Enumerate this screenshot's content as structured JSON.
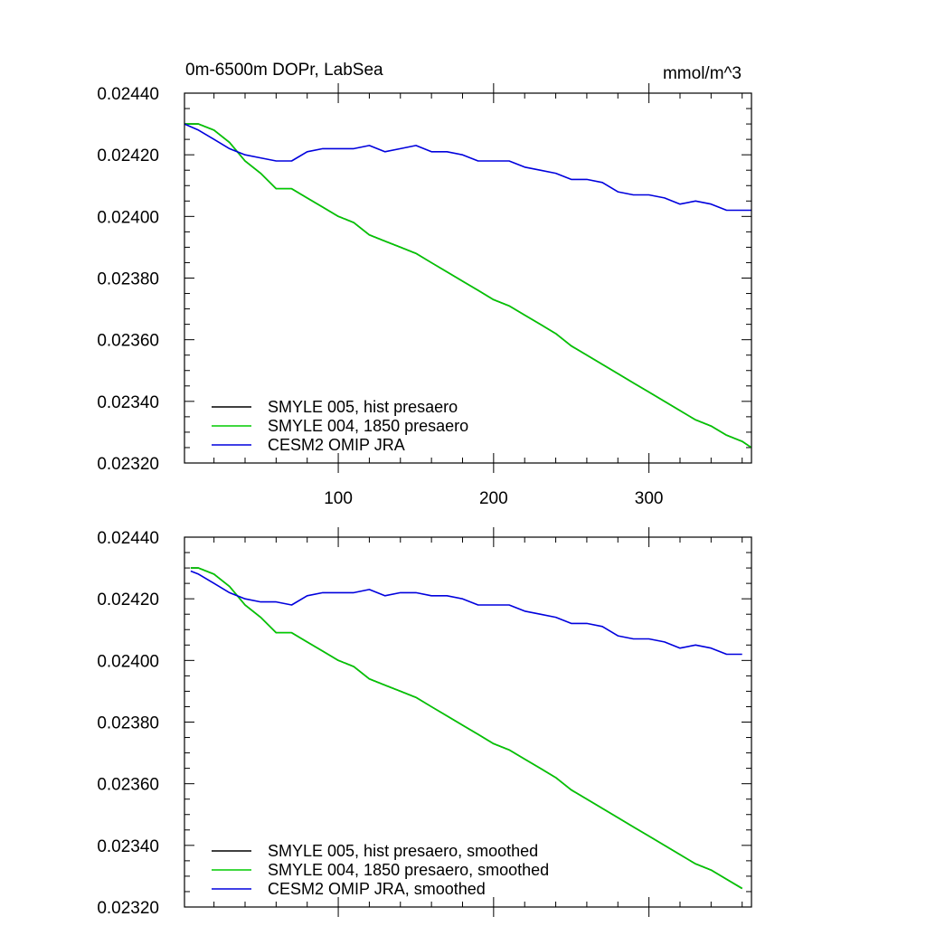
{
  "chart_data": [
    {
      "type": "line",
      "title": "0m-6500m DOPr, LabSea",
      "units": "mmol/m^3",
      "xlim": [
        1,
        366
      ],
      "ylim": [
        0.0232,
        0.0244
      ],
      "x_ticks": [
        100,
        200,
        300
      ],
      "x_tick_labels": [
        "100",
        "200",
        "300"
      ],
      "y_ticks": [
        0.0232,
        0.0234,
        0.0236,
        0.0238,
        0.024,
        0.0242,
        0.0244
      ],
      "y_tick_labels": [
        "0.02320",
        "0.02340",
        "0.02360",
        "0.02380",
        "0.02400",
        "0.02420",
        "0.02440"
      ],
      "legend": "bottom-left",
      "grid": false,
      "series": [
        {
          "name": "SMYLE 005, hist presaero",
          "color": "#000000",
          "x": [
            1,
            10,
            20,
            30,
            40,
            50,
            60,
            70,
            80,
            90,
            100,
            110,
            120,
            130,
            140,
            150,
            160,
            170,
            180,
            190,
            200,
            210,
            220,
            230,
            240,
            250,
            260,
            270,
            280,
            290,
            300,
            310,
            320,
            330,
            340,
            350,
            360,
            366
          ],
          "values": [
            0.0243,
            0.0243,
            0.02428,
            0.02424,
            0.02418,
            0.02414,
            0.02409,
            0.02409,
            0.02406,
            0.02403,
            0.024,
            0.02398,
            0.02394,
            0.02392,
            0.0239,
            0.02388,
            0.02385,
            0.02382,
            0.02379,
            0.02376,
            0.02373,
            0.02371,
            0.02368,
            0.02365,
            0.02362,
            0.02358,
            0.02355,
            0.02352,
            0.02349,
            0.02346,
            0.02343,
            0.0234,
            0.02337,
            0.02334,
            0.02332,
            0.02329,
            0.02327,
            0.02325
          ]
        },
        {
          "name": "SMYLE 004, 1850 presaero",
          "color": "#00cc00",
          "x": [
            1,
            10,
            20,
            30,
            40,
            50,
            60,
            70,
            80,
            90,
            100,
            110,
            120,
            130,
            140,
            150,
            160,
            170,
            180,
            190,
            200,
            210,
            220,
            230,
            240,
            250,
            260,
            270,
            280,
            290,
            300,
            310,
            320,
            330,
            340,
            350,
            360,
            366
          ],
          "values": [
            0.0243,
            0.0243,
            0.02428,
            0.02424,
            0.02418,
            0.02414,
            0.02409,
            0.02409,
            0.02406,
            0.02403,
            0.024,
            0.02398,
            0.02394,
            0.02392,
            0.0239,
            0.02388,
            0.02385,
            0.02382,
            0.02379,
            0.02376,
            0.02373,
            0.02371,
            0.02368,
            0.02365,
            0.02362,
            0.02358,
            0.02355,
            0.02352,
            0.02349,
            0.02346,
            0.02343,
            0.0234,
            0.02337,
            0.02334,
            0.02332,
            0.02329,
            0.02327,
            0.02325
          ]
        },
        {
          "name": "CESM2 OMIP JRA",
          "color": "#0000dd",
          "x": [
            1,
            10,
            20,
            30,
            40,
            50,
            60,
            70,
            80,
            90,
            100,
            110,
            120,
            130,
            140,
            150,
            160,
            170,
            180,
            190,
            200,
            210,
            220,
            230,
            240,
            250,
            260,
            270,
            280,
            290,
            300,
            310,
            320,
            330,
            340,
            350,
            360,
            366
          ],
          "values": [
            0.0243,
            0.02428,
            0.02425,
            0.02422,
            0.0242,
            0.02419,
            0.02418,
            0.02418,
            0.02421,
            0.02422,
            0.02422,
            0.02422,
            0.02423,
            0.02421,
            0.02422,
            0.02423,
            0.02421,
            0.02421,
            0.0242,
            0.02418,
            0.02418,
            0.02418,
            0.02416,
            0.02415,
            0.02414,
            0.02412,
            0.02412,
            0.02411,
            0.02408,
            0.02407,
            0.02407,
            0.02406,
            0.02404,
            0.02405,
            0.02404,
            0.02402,
            0.02402,
            0.02402
          ]
        }
      ]
    },
    {
      "type": "line",
      "title": "",
      "units": "",
      "xlim": [
        1,
        366
      ],
      "ylim": [
        0.0232,
        0.0244
      ],
      "x_ticks": [
        100,
        200,
        300
      ],
      "x_tick_labels": [],
      "y_ticks": [
        0.0232,
        0.0234,
        0.0236,
        0.0238,
        0.024,
        0.0242,
        0.0244
      ],
      "y_tick_labels": [
        "0.02320",
        "0.02340",
        "0.02360",
        "0.02380",
        "0.02400",
        "0.02420",
        "0.02440"
      ],
      "legend": "bottom-left",
      "grid": false,
      "series": [
        {
          "name": "SMYLE 005, hist presaero, smoothed",
          "color": "#000000",
          "x": [
            5,
            10,
            20,
            30,
            40,
            50,
            60,
            70,
            80,
            90,
            100,
            110,
            120,
            130,
            140,
            150,
            160,
            170,
            180,
            190,
            200,
            210,
            220,
            230,
            240,
            250,
            260,
            270,
            280,
            290,
            300,
            310,
            320,
            330,
            340,
            350,
            360
          ],
          "values": [
            0.0243,
            0.0243,
            0.02428,
            0.02424,
            0.02418,
            0.02414,
            0.02409,
            0.02409,
            0.02406,
            0.02403,
            0.024,
            0.02398,
            0.02394,
            0.02392,
            0.0239,
            0.02388,
            0.02385,
            0.02382,
            0.02379,
            0.02376,
            0.02373,
            0.02371,
            0.02368,
            0.02365,
            0.02362,
            0.02358,
            0.02355,
            0.02352,
            0.02349,
            0.02346,
            0.02343,
            0.0234,
            0.02337,
            0.02334,
            0.02332,
            0.02329,
            0.02326
          ]
        },
        {
          "name": "SMYLE 004, 1850 presaero, smoothed",
          "color": "#00cc00",
          "x": [
            5,
            10,
            20,
            30,
            40,
            50,
            60,
            70,
            80,
            90,
            100,
            110,
            120,
            130,
            140,
            150,
            160,
            170,
            180,
            190,
            200,
            210,
            220,
            230,
            240,
            250,
            260,
            270,
            280,
            290,
            300,
            310,
            320,
            330,
            340,
            350,
            360
          ],
          "values": [
            0.0243,
            0.0243,
            0.02428,
            0.02424,
            0.02418,
            0.02414,
            0.02409,
            0.02409,
            0.02406,
            0.02403,
            0.024,
            0.02398,
            0.02394,
            0.02392,
            0.0239,
            0.02388,
            0.02385,
            0.02382,
            0.02379,
            0.02376,
            0.02373,
            0.02371,
            0.02368,
            0.02365,
            0.02362,
            0.02358,
            0.02355,
            0.02352,
            0.02349,
            0.02346,
            0.02343,
            0.0234,
            0.02337,
            0.02334,
            0.02332,
            0.02329,
            0.02326
          ]
        },
        {
          "name": "CESM2 OMIP JRA, smoothed",
          "color": "#0000dd",
          "x": [
            5,
            10,
            20,
            30,
            40,
            50,
            60,
            70,
            80,
            90,
            100,
            110,
            120,
            130,
            140,
            150,
            160,
            170,
            180,
            190,
            200,
            210,
            220,
            230,
            240,
            250,
            260,
            270,
            280,
            290,
            300,
            310,
            320,
            330,
            340,
            350,
            360
          ],
          "values": [
            0.02429,
            0.02428,
            0.02425,
            0.02422,
            0.0242,
            0.02419,
            0.02419,
            0.02418,
            0.02421,
            0.02422,
            0.02422,
            0.02422,
            0.02423,
            0.02421,
            0.02422,
            0.02422,
            0.02421,
            0.02421,
            0.0242,
            0.02418,
            0.02418,
            0.02418,
            0.02416,
            0.02415,
            0.02414,
            0.02412,
            0.02412,
            0.02411,
            0.02408,
            0.02407,
            0.02407,
            0.02406,
            0.02404,
            0.02405,
            0.02404,
            0.02402,
            0.02402
          ]
        }
      ]
    }
  ]
}
